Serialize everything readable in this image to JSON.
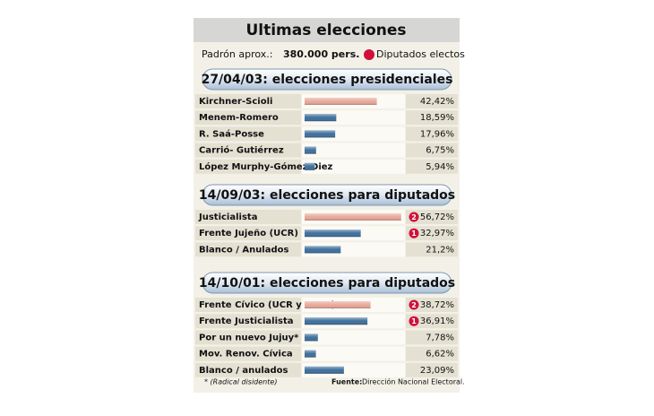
{
  "header": {
    "title": "Ultimas elecciones",
    "padron_label": "Padrón aprox.:",
    "padron_value": "380.000 pers.",
    "legend": "Diputados electos"
  },
  "footer": {
    "note": "* (Radical disidente)",
    "source_label": "Fuente:",
    "source": "Dirección Nacional Electoral."
  },
  "chart_data": [
    {
      "type": "bar",
      "title": "27/04/03: elecciones presidenciales",
      "categories": [
        "Kirchner-Scioli",
        "Menem-Romero",
        "R. Saá-Posse",
        "Carrió- Gutiérrez",
        "López Murphy-Gómez Diez"
      ],
      "values": [
        42.42,
        18.59,
        17.96,
        6.75,
        5.94
      ],
      "value_labels": [
        "42,42%",
        "18,59%",
        "17,96%",
        "6,75%",
        "5,94%"
      ],
      "colors": [
        "#e9a99a",
        "#3d6e9c",
        "#3d6e9c",
        "#3d6e9c",
        "#3d6e9c"
      ],
      "seats": [
        null,
        null,
        null,
        null,
        null
      ]
    },
    {
      "type": "bar",
      "title": "14/09/03: elecciones para diputados",
      "categories": [
        "Justicialista",
        "Frente Jujeño (UCR)",
        "Blanco / Anulados"
      ],
      "values": [
        56.72,
        32.97,
        21.2
      ],
      "value_labels": [
        "56,72%",
        "32,97%",
        "21,2%"
      ],
      "colors": [
        "#e9a99a",
        "#3d6e9c",
        "#3d6e9c"
      ],
      "seats": [
        2,
        1,
        null
      ]
    },
    {
      "type": "bar",
      "title": "14/10/01: elecciones para diputados",
      "categories": [
        "Frente Cívico (UCR y otros)",
        "Frente Justicialista",
        "Por un nuevo Jujuy*",
        "Mov. Renov. Cívica",
        "Blanco / anulados"
      ],
      "values": [
        38.72,
        36.91,
        7.78,
        6.62,
        23.09
      ],
      "value_labels": [
        "38,72%",
        "36,91%",
        "7,78%",
        "6,62%",
        "23,09%"
      ],
      "colors": [
        "#e9a99a",
        "#3d6e9c",
        "#3d6e9c",
        "#3d6e9c",
        "#3d6e9c"
      ],
      "seats": [
        2,
        1,
        null,
        null,
        null
      ]
    }
  ]
}
